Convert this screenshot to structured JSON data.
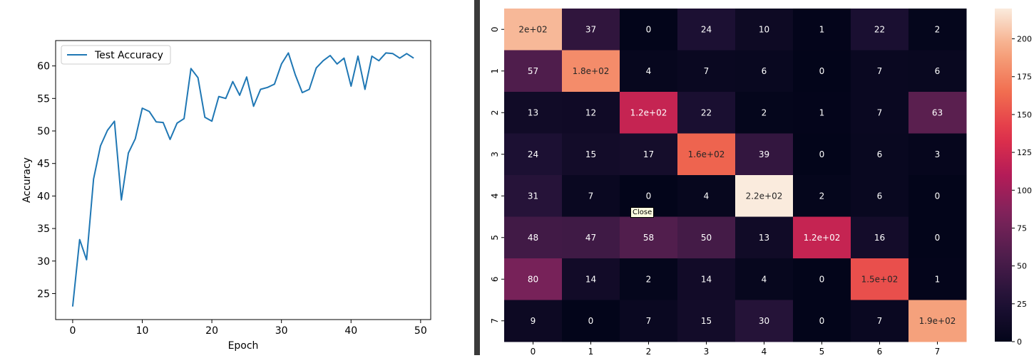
{
  "chart_data": [
    {
      "type": "line",
      "xlabel": "Epoch",
      "ylabel": "Accuracy",
      "xlim": [
        -2.45,
        51.45
      ],
      "ylim": [
        21.0,
        63.9
      ],
      "xticks": [
        0,
        10,
        20,
        30,
        40,
        50
      ],
      "yticks": [
        25,
        30,
        35,
        40,
        45,
        50,
        55,
        60
      ],
      "legend_position": "upper-left",
      "series": [
        {
          "name": "Test Accuracy",
          "color": "#1f77b4",
          "x": [
            0,
            1,
            2,
            3,
            4,
            5,
            6,
            7,
            8,
            9,
            10,
            11,
            12,
            13,
            14,
            15,
            16,
            17,
            18,
            19,
            20,
            21,
            22,
            23,
            24,
            25,
            26,
            27,
            28,
            29,
            30,
            31,
            32,
            33,
            34,
            35,
            36,
            37,
            38,
            39,
            40,
            41,
            42,
            43,
            44,
            45,
            46,
            47,
            48,
            49
          ],
          "y": [
            23.0,
            33.3,
            30.2,
            42.6,
            47.7,
            50.1,
            51.5,
            39.4,
            46.6,
            48.8,
            53.5,
            53.0,
            51.4,
            51.3,
            48.7,
            51.2,
            51.9,
            59.6,
            58.2,
            52.1,
            51.5,
            55.3,
            55.0,
            57.6,
            55.5,
            58.3,
            53.8,
            56.4,
            56.7,
            57.2,
            60.3,
            62.0,
            58.6,
            55.9,
            56.4,
            59.7,
            60.8,
            61.6,
            60.3,
            61.2,
            56.9,
            61.5,
            56.4,
            61.5,
            60.8,
            62.0,
            61.9,
            61.2,
            61.9,
            61.2
          ]
        }
      ]
    },
    {
      "type": "heatmap",
      "row_labels": [
        "0",
        "1",
        "2",
        "3",
        "4",
        "5",
        "6",
        "7"
      ],
      "col_labels": [
        "0",
        "1",
        "2",
        "3",
        "4",
        "5",
        "6",
        "7"
      ],
      "values": [
        [
          200,
          37,
          0,
          24,
          10,
          1,
          22,
          2
        ],
        [
          57,
          180,
          4,
          7,
          6,
          0,
          7,
          6
        ],
        [
          13,
          12,
          120,
          22,
          2,
          1,
          7,
          63
        ],
        [
          24,
          15,
          17,
          160,
          39,
          0,
          6,
          3
        ],
        [
          31,
          7,
          0,
          4,
          220,
          2,
          6,
          0
        ],
        [
          48,
          47,
          58,
          50,
          13,
          120,
          16,
          0
        ],
        [
          80,
          14,
          2,
          14,
          4,
          0,
          150,
          1
        ],
        [
          9,
          0,
          7,
          15,
          30,
          0,
          7,
          190
        ]
      ],
      "labels": [
        [
          "2e+02",
          "37",
          "0",
          "24",
          "10",
          "1",
          "22",
          "2"
        ],
        [
          "57",
          "1.8e+02",
          "4",
          "7",
          "6",
          "0",
          "7",
          "6"
        ],
        [
          "13",
          "12",
          "1.2e+02",
          "22",
          "2",
          "1",
          "7",
          "63"
        ],
        [
          "24",
          "15",
          "17",
          "1.6e+02",
          "39",
          "0",
          "6",
          "3"
        ],
        [
          "31",
          "7",
          "0",
          "4",
          "2.2e+02",
          "2",
          "6",
          "0"
        ],
        [
          "48",
          "47",
          "58",
          "50",
          "13",
          "1.2e+02",
          "16",
          "0"
        ],
        [
          "80",
          "14",
          "2",
          "14",
          "4",
          "0",
          "1.5e+02",
          "1"
        ],
        [
          "9",
          "0",
          "7",
          "15",
          "30",
          "0",
          "7",
          "1.9e+02"
        ]
      ],
      "colormap": "rocket",
      "colorbar_range": [
        0,
        220
      ],
      "colorbar_ticks": [
        0,
        25,
        50,
        75,
        100,
        125,
        150,
        175,
        200
      ]
    }
  ],
  "tooltip": {
    "text": "Close"
  }
}
